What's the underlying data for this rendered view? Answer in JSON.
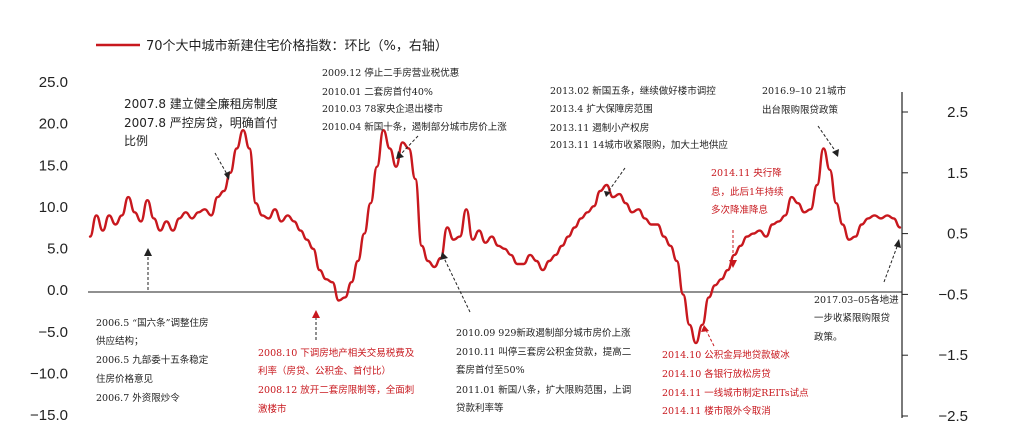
{
  "chart_data": {
    "type": "line",
    "title": "",
    "xlabel": "",
    "ylabel": "",
    "grid": false,
    "legend_position": "top-left",
    "colors": {
      "series": "#c8181e",
      "axis": "#222222",
      "annotation_red": "#c8181e"
    },
    "y_left": {
      "range": [
        -15.0,
        25.0
      ],
      "ticks": [
        "25.0",
        "20.0",
        "15.0",
        "10.0",
        "5.0",
        "0.0",
        "−5.0",
        "−10.0",
        "−15.0"
      ]
    },
    "y_right": {
      "range": [
        -2.5,
        2.5
      ],
      "ticks": [
        "2.5",
        "1.5",
        "0.5",
        "−0.5",
        "−1.5",
        "−2.5"
      ]
    },
    "series": [
      {
        "name": "70个大中城市新建住宅价格指数：环比（%，右轴）",
        "axis": "right",
        "x_start": "2006-01",
        "x_end": "2017-05",
        "values": [
          0.45,
          0.8,
          0.55,
          0.8,
          0.65,
          0.8,
          1.1,
          0.85,
          0.7,
          1.05,
          0.75,
          0.55,
          0.7,
          0.55,
          0.75,
          0.85,
          0.75,
          0.85,
          0.9,
          0.8,
          1.1,
          1.2,
          1.5,
          1.9,
          2.2,
          1.9,
          1.0,
          0.8,
          0.75,
          0.9,
          0.7,
          0.8,
          0.7,
          0.55,
          0.4,
          0.25,
          -0.1,
          -0.25,
          -0.3,
          -0.6,
          -0.55,
          -0.3,
          0.05,
          0.5,
          1.0,
          1.6,
          2.2,
          1.9,
          1.6,
          2.0,
          1.9,
          1.4,
          0.3,
          0.05,
          -0.05,
          0.1,
          0.6,
          0.4,
          0.45,
          0.9,
          0.4,
          0.55,
          0.35,
          0.45,
          0.3,
          0.25,
          0.15,
          0.0,
          0.0,
          0.15,
          0.05,
          -0.1,
          0.05,
          0.15,
          0.3,
          0.45,
          0.6,
          0.75,
          0.85,
          0.95,
          1.2,
          1.3,
          1.1,
          1.15,
          1.0,
          0.85,
          0.9,
          0.75,
          0.65,
          0.65,
          0.45,
          0.3,
          0.05,
          -0.5,
          -1.0,
          -1.3,
          -1.0,
          -0.55,
          -0.35,
          -0.25,
          -0.1,
          0.15,
          0.3,
          0.45,
          0.5,
          0.55,
          0.45,
          0.65,
          0.7,
          0.8,
          1.1,
          1.0,
          0.85,
          0.9,
          1.3,
          1.9,
          1.55,
          1.0,
          0.65,
          0.4,
          0.45,
          0.65,
          0.75,
          0.8,
          0.75,
          0.8,
          0.75,
          0.6
        ]
      }
    ],
    "annotations": [
      {
        "color": "black",
        "lines": [
          "2006.5 “国六条”调整住房",
          "供应结构；",
          "2006.5 九部委十五条稳定",
          "住房价格意见",
          "2006.7 外资限炒令"
        ]
      },
      {
        "color": "black",
        "lines": [
          "2007.8 建立健全廉租房制度",
          "2007.8 严控房贷，明确首付",
          "比例"
        ]
      },
      {
        "color": "red",
        "lines": [
          "2008.10 下调房地产相关交易税费及",
          "利率（房贷、公积金、首付比）",
          "2008.12 放开二套房限制等，全面刺",
          "激楼市"
        ]
      },
      {
        "color": "black",
        "lines": [
          "2009.12 停止二手房营业税优惠",
          "2010.01 二套房首付40%",
          "2010.03 78家央企退出楼市",
          "2010.04 新国十条，遏制部分城市房价上涨"
        ]
      },
      {
        "color": "black",
        "lines": [
          "2010.09 929新政遏制部分城市房价上涨",
          "2010.11 叫停三套房公积金贷款，提高二",
          "套房首付至50%",
          "2011.01 新国八条，扩大限购范围，上调",
          "贷款利率等"
        ]
      },
      {
        "color": "black",
        "lines": [
          "2013.02 新国五条，继续做好楼市调控",
          "2013.4 扩大保障房范围",
          "2013.11 遏制小产权房",
          "2013.11 14城市收紧限购，加大土地供应"
        ]
      },
      {
        "color": "red",
        "lines": [
          "2014.11 央行降",
          "息，此后1年持续",
          "多次降准降息"
        ]
      },
      {
        "color": "red",
        "lines": [
          "2014.10 公积金异地贷款破冰",
          "2014.10 各银行放松房贷",
          "2014.11 一线城市制定REITs试点",
          "2014.11 楼市限外令取消"
        ]
      },
      {
        "color": "black",
        "lines": [
          "2016.9–10 21城市",
          "出台限购限贷政策"
        ]
      },
      {
        "color": "black",
        "lines": [
          "2017.03–05各地进",
          "一步收紧限购限贷",
          "政策。"
        ]
      }
    ]
  }
}
